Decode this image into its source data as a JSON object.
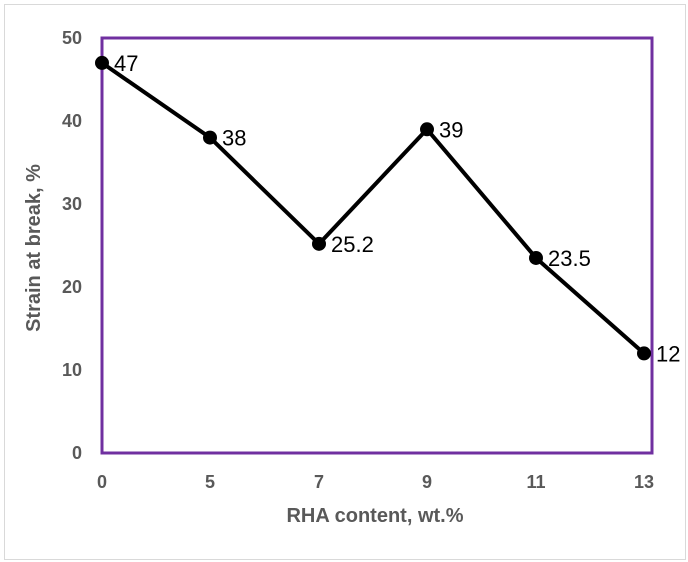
{
  "chart_data": {
    "type": "line",
    "categories": [
      "0",
      "5",
      "7",
      "9",
      "11",
      "13"
    ],
    "values": [
      47,
      38,
      25.2,
      39,
      23.5,
      12
    ],
    "data_labels": [
      "47",
      "38",
      "25.2",
      "39",
      "23.5",
      "12"
    ],
    "xlabel": "RHA content, wt.%",
    "ylabel": "Strain at break, %",
    "ylim": [
      0,
      50
    ],
    "yticks": [
      0,
      10,
      20,
      30,
      40,
      50
    ],
    "grid": false,
    "legend": "none",
    "line_color": "#000000",
    "plot_border_color": "#7030a0"
  }
}
